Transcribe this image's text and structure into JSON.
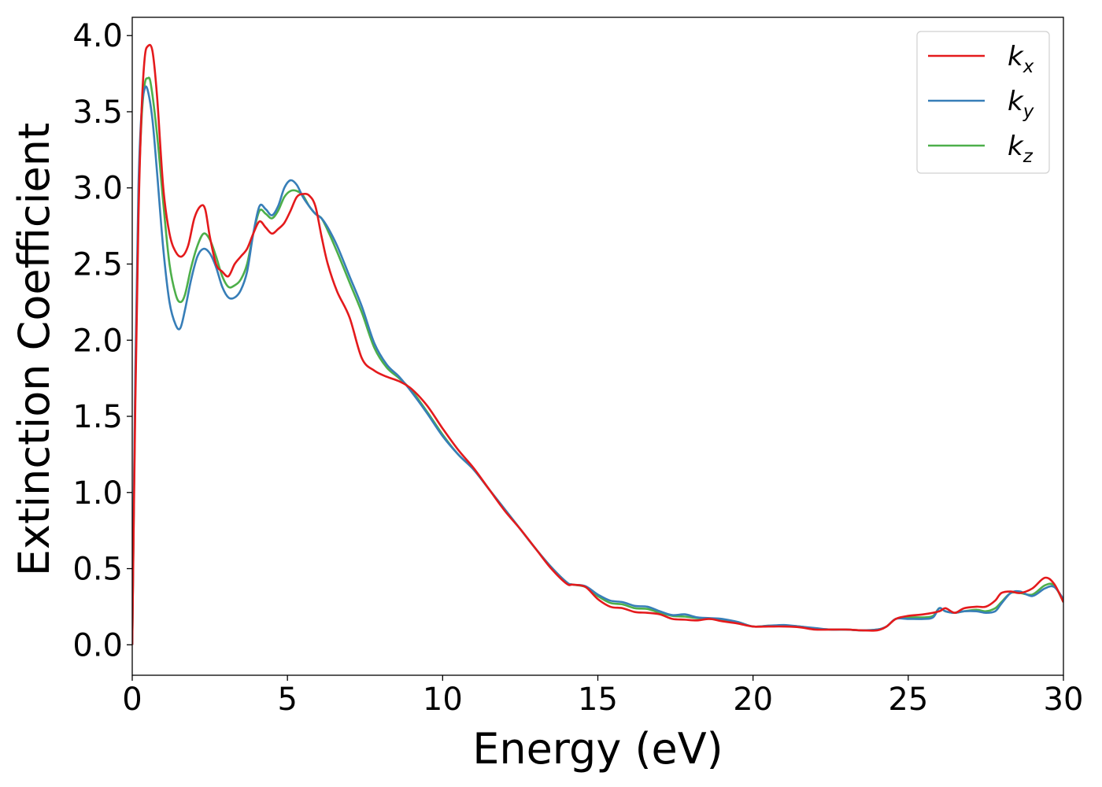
{
  "chart_data": {
    "type": "line",
    "xlabel": "Energy (eV)",
    "ylabel": "Extinction Coefficient",
    "xlim": [
      0,
      30
    ],
    "ylim": [
      -0.2,
      4.12
    ],
    "xticks": [
      0,
      5,
      10,
      15,
      20,
      25,
      30
    ],
    "xtick_labels": [
      "0",
      "5",
      "10",
      "15",
      "20",
      "25",
      "30"
    ],
    "yticks": [
      0.0,
      0.5,
      1.0,
      1.5,
      2.0,
      2.5,
      3.0,
      3.5,
      4.0
    ],
    "ytick_labels": [
      "0.0",
      "0.5",
      "1.0",
      "1.5",
      "2.0",
      "2.5",
      "3.0",
      "3.5",
      "4.0"
    ],
    "grid": false,
    "legend": {
      "position": "top-right",
      "entries": [
        {
          "symbol": "k",
          "sub": "x",
          "color": "#e41a1c"
        },
        {
          "symbol": "k",
          "sub": "y",
          "color": "#377eb8"
        },
        {
          "symbol": "k",
          "sub": "z",
          "color": "#4daf4a"
        }
      ]
    },
    "series": [
      {
        "name": "kx",
        "color": "#e41a1c",
        "x": [
          0,
          0.1,
          0.2,
          0.3,
          0.4,
          0.5,
          0.65,
          0.8,
          1.0,
          1.2,
          1.4,
          1.6,
          1.8,
          2.0,
          2.2,
          2.35,
          2.5,
          2.7,
          2.9,
          3.1,
          3.3,
          3.5,
          3.7,
          3.9,
          4.1,
          4.3,
          4.5,
          4.7,
          4.9,
          5.1,
          5.3,
          5.5,
          5.7,
          5.9,
          6.1,
          6.3,
          6.6,
          7.0,
          7.4,
          7.8,
          8.2,
          8.6,
          9.0,
          9.5,
          10.0,
          10.5,
          11.0,
          11.5,
          12.0,
          12.5,
          13.0,
          13.5,
          14.0,
          14.2,
          14.6,
          15.0,
          15.4,
          15.8,
          16.2,
          16.6,
          17.0,
          17.4,
          17.8,
          18.2,
          18.6,
          19.0,
          19.5,
          20.0,
          20.5,
          21.0,
          21.5,
          22.0,
          22.5,
          23.0,
          23.5,
          24.0,
          24.3,
          24.6,
          25.0,
          25.5,
          26.0,
          26.2,
          26.5,
          26.8,
          27.2,
          27.5,
          27.8,
          28.0,
          28.3,
          28.6,
          29.0,
          29.4,
          29.7,
          30.0
        ],
        "y": [
          0.0,
          1.6,
          2.8,
          3.5,
          3.85,
          3.93,
          3.9,
          3.6,
          3.0,
          2.7,
          2.58,
          2.55,
          2.62,
          2.8,
          2.88,
          2.86,
          2.68,
          2.5,
          2.45,
          2.42,
          2.5,
          2.55,
          2.6,
          2.7,
          2.78,
          2.74,
          2.7,
          2.73,
          2.77,
          2.85,
          2.94,
          2.96,
          2.95,
          2.88,
          2.68,
          2.5,
          2.32,
          2.15,
          1.88,
          1.8,
          1.76,
          1.73,
          1.68,
          1.57,
          1.42,
          1.28,
          1.16,
          1.02,
          0.88,
          0.76,
          0.63,
          0.5,
          0.4,
          0.395,
          0.38,
          0.3,
          0.25,
          0.24,
          0.215,
          0.21,
          0.2,
          0.17,
          0.165,
          0.16,
          0.17,
          0.155,
          0.14,
          0.12,
          0.12,
          0.12,
          0.115,
          0.1,
          0.1,
          0.1,
          0.095,
          0.095,
          0.12,
          0.17,
          0.19,
          0.2,
          0.22,
          0.24,
          0.21,
          0.24,
          0.25,
          0.25,
          0.29,
          0.34,
          0.35,
          0.34,
          0.37,
          0.44,
          0.4,
          0.28
        ]
      },
      {
        "name": "ky",
        "color": "#377eb8",
        "x": [
          0,
          0.1,
          0.2,
          0.3,
          0.4,
          0.5,
          0.65,
          0.8,
          1.0,
          1.2,
          1.4,
          1.55,
          1.7,
          1.9,
          2.1,
          2.3,
          2.5,
          2.7,
          2.9,
          3.1,
          3.3,
          3.5,
          3.7,
          3.9,
          4.1,
          4.3,
          4.5,
          4.7,
          4.9,
          5.1,
          5.3,
          5.5,
          5.7,
          5.9,
          6.1,
          6.3,
          6.6,
          7.0,
          7.4,
          7.8,
          8.2,
          8.6,
          9.0,
          9.5,
          10.0,
          10.5,
          11.0,
          11.5,
          12.0,
          12.5,
          13.0,
          13.5,
          14.0,
          14.2,
          14.6,
          15.0,
          15.4,
          15.8,
          16.2,
          16.6,
          17.0,
          17.4,
          17.8,
          18.2,
          18.6,
          19.0,
          19.5,
          20.0,
          20.5,
          21.0,
          21.5,
          22.0,
          22.5,
          23.0,
          23.5,
          24.0,
          24.3,
          24.6,
          25.0,
          25.5,
          25.8,
          26.0,
          26.2,
          26.5,
          26.8,
          27.2,
          27.5,
          27.8,
          28.0,
          28.3,
          28.6,
          29.0,
          29.4,
          29.7,
          30.0
        ],
        "y": [
          0.0,
          1.8,
          3.0,
          3.5,
          3.65,
          3.64,
          3.45,
          3.1,
          2.6,
          2.25,
          2.1,
          2.08,
          2.2,
          2.4,
          2.55,
          2.6,
          2.57,
          2.48,
          2.35,
          2.28,
          2.28,
          2.33,
          2.45,
          2.7,
          2.88,
          2.86,
          2.82,
          2.88,
          3.0,
          3.05,
          3.02,
          2.94,
          2.88,
          2.83,
          2.8,
          2.74,
          2.62,
          2.42,
          2.22,
          1.98,
          1.84,
          1.76,
          1.66,
          1.52,
          1.37,
          1.25,
          1.15,
          1.02,
          0.89,
          0.76,
          0.63,
          0.51,
          0.41,
          0.395,
          0.385,
          0.33,
          0.29,
          0.28,
          0.255,
          0.25,
          0.22,
          0.195,
          0.2,
          0.18,
          0.175,
          0.17,
          0.15,
          0.12,
          0.125,
          0.13,
          0.12,
          0.11,
          0.1,
          0.1,
          0.095,
          0.1,
          0.12,
          0.17,
          0.17,
          0.17,
          0.18,
          0.24,
          0.22,
          0.21,
          0.22,
          0.22,
          0.21,
          0.22,
          0.27,
          0.34,
          0.35,
          0.32,
          0.37,
          0.38,
          0.3
        ]
      },
      {
        "name": "kz",
        "color": "#4daf4a",
        "x": [
          0,
          0.1,
          0.2,
          0.3,
          0.4,
          0.5,
          0.6,
          0.8,
          1.0,
          1.2,
          1.4,
          1.55,
          1.7,
          1.9,
          2.1,
          2.3,
          2.5,
          2.7,
          2.9,
          3.1,
          3.3,
          3.5,
          3.7,
          3.9,
          4.1,
          4.3,
          4.5,
          4.7,
          4.9,
          5.1,
          5.3,
          5.5,
          5.7,
          5.9,
          6.1,
          6.3,
          6.6,
          7.0,
          7.4,
          7.8,
          8.2,
          8.6,
          9.0,
          9.5,
          10.0,
          10.5,
          11.0,
          11.5,
          12.0,
          12.5,
          13.0,
          13.5,
          14.0,
          14.2,
          14.6,
          15.0,
          15.4,
          15.8,
          16.2,
          16.6,
          17.0,
          17.4,
          17.8,
          18.2,
          18.6,
          19.0,
          19.5,
          20.0,
          20.5,
          21.0,
          21.5,
          22.0,
          22.5,
          23.0,
          23.5,
          24.0,
          24.3,
          24.6,
          25.0,
          25.5,
          25.8,
          26.0,
          26.2,
          26.5,
          26.8,
          27.2,
          27.5,
          27.8,
          28.0,
          28.3,
          28.6,
          29.0,
          29.4,
          29.7,
          30.0
        ],
        "y": [
          0.0,
          1.7,
          2.9,
          3.45,
          3.68,
          3.72,
          3.68,
          3.35,
          2.9,
          2.5,
          2.3,
          2.25,
          2.3,
          2.48,
          2.62,
          2.7,
          2.66,
          2.55,
          2.42,
          2.35,
          2.36,
          2.4,
          2.5,
          2.7,
          2.85,
          2.83,
          2.8,
          2.85,
          2.94,
          2.98,
          2.98,
          2.95,
          2.88,
          2.83,
          2.8,
          2.72,
          2.58,
          2.38,
          2.18,
          1.95,
          1.82,
          1.75,
          1.67,
          1.53,
          1.38,
          1.25,
          1.15,
          1.02,
          0.89,
          0.76,
          0.63,
          0.51,
          0.41,
          0.395,
          0.38,
          0.32,
          0.275,
          0.265,
          0.24,
          0.235,
          0.21,
          0.19,
          0.185,
          0.175,
          0.17,
          0.165,
          0.15,
          0.12,
          0.125,
          0.125,
          0.12,
          0.105,
          0.1,
          0.1,
          0.095,
          0.1,
          0.12,
          0.17,
          0.18,
          0.18,
          0.19,
          0.24,
          0.22,
          0.21,
          0.22,
          0.23,
          0.22,
          0.24,
          0.28,
          0.34,
          0.34,
          0.33,
          0.39,
          0.39,
          0.28
        ]
      }
    ]
  }
}
